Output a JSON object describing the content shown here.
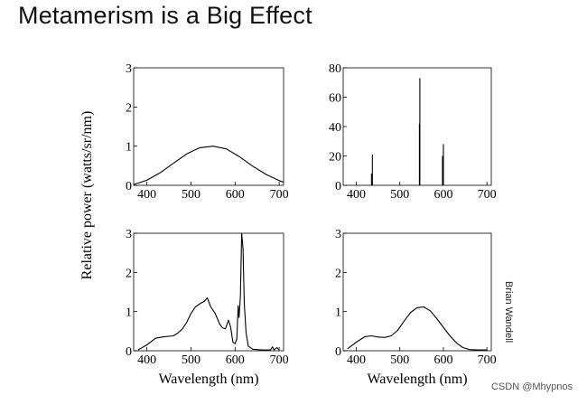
{
  "title": "Metamerism is a Big Effect",
  "y_axis_label": "Relative power (watts/sr/nm)",
  "credit": "Brian Wandell",
  "watermark": "CSDN @Mhypnos",
  "chart_data": [
    {
      "type": "line",
      "name": "top-left",
      "xlim": [
        370,
        710
      ],
      "ylim": [
        0,
        3
      ],
      "xticks": [
        400,
        500,
        600,
        700
      ],
      "yticks": [
        0,
        1,
        2,
        3
      ],
      "xlabel": "",
      "x": [
        370,
        400,
        430,
        460,
        490,
        520,
        550,
        580,
        610,
        640,
        670,
        700,
        710
      ],
      "y": [
        0.02,
        0.13,
        0.32,
        0.56,
        0.8,
        0.96,
        1.0,
        0.93,
        0.73,
        0.49,
        0.28,
        0.12,
        0.08
      ]
    },
    {
      "type": "bar",
      "name": "top-right",
      "xlim": [
        370,
        710
      ],
      "ylim": [
        0,
        80
      ],
      "xticks": [
        400,
        500,
        600,
        700
      ],
      "yticks": [
        0,
        20,
        40,
        60,
        80
      ],
      "xlabel": "",
      "x": [
        435,
        437,
        545,
        546,
        598,
        600
      ],
      "values": [
        8,
        21,
        42,
        73,
        20,
        28
      ]
    },
    {
      "type": "line",
      "name": "bottom-left",
      "xlim": [
        370,
        710
      ],
      "ylim": [
        0,
        3
      ],
      "xticks": [
        400,
        500,
        600,
        700
      ],
      "yticks": [
        0,
        1,
        2,
        3
      ],
      "xlabel": "Wavelength (nm)",
      "x": [
        380,
        400,
        420,
        440,
        460,
        470,
        480,
        490,
        500,
        510,
        520,
        530,
        537,
        545,
        555,
        565,
        572,
        578,
        585,
        590,
        595,
        600,
        604,
        607,
        609,
        612,
        615,
        618,
        621,
        625,
        630,
        640,
        660,
        680,
        685,
        688,
        695,
        700
      ],
      "y": [
        0.02,
        0.15,
        0.32,
        0.36,
        0.38,
        0.45,
        0.55,
        0.72,
        0.95,
        1.12,
        1.2,
        1.26,
        1.35,
        1.12,
        0.95,
        0.68,
        0.58,
        0.56,
        0.78,
        0.6,
        0.22,
        0.18,
        0.3,
        1.15,
        0.85,
        1.4,
        3.0,
        2.6,
        1.2,
        0.45,
        0.12,
        0.04,
        0.02,
        0.02,
        0.1,
        0.02,
        0.08,
        0.02
      ]
    },
    {
      "type": "line",
      "name": "bottom-right",
      "xlim": [
        370,
        710
      ],
      "ylim": [
        0,
        3
      ],
      "xticks": [
        400,
        500,
        600,
        700
      ],
      "yticks": [
        0,
        1,
        2,
        3
      ],
      "xlabel": "Wavelength (nm)",
      "x": [
        380,
        400,
        420,
        435,
        450,
        465,
        480,
        495,
        510,
        525,
        540,
        555,
        570,
        585,
        600,
        615,
        630,
        645,
        660,
        680,
        700
      ],
      "y": [
        0.05,
        0.22,
        0.36,
        0.38,
        0.35,
        0.34,
        0.38,
        0.52,
        0.76,
        0.98,
        1.1,
        1.12,
        1.02,
        0.82,
        0.6,
        0.38,
        0.2,
        0.08,
        0.03,
        0.02,
        0.02
      ]
    }
  ]
}
